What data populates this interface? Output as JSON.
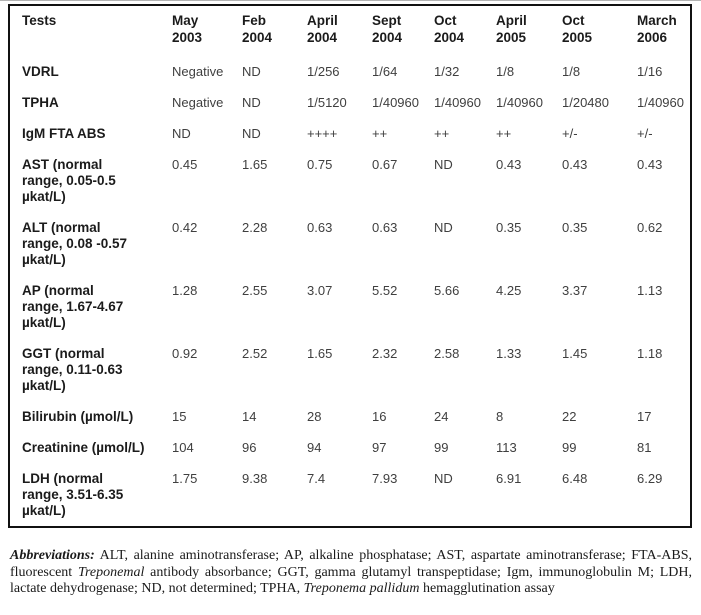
{
  "table": {
    "header": [
      "Tests",
      "May\n2003",
      "Feb\n2004",
      "April\n2004",
      "Sept\n2004",
      "Oct\n2004",
      "April\n2005",
      "Oct\n2005",
      "March\n2006"
    ],
    "rows": [
      {
        "label": "VDRL",
        "values": [
          "Negative",
          "ND",
          "1/256",
          "1/64",
          "1/32",
          "1/8",
          "1/8",
          "1/16"
        ]
      },
      {
        "label": "TPHA",
        "values": [
          "Negative",
          "ND",
          "1/5120",
          "1/40960",
          "1/40960",
          "1/40960",
          "1/20480",
          "1/40960"
        ]
      },
      {
        "label": "IgM FTA ABS",
        "values": [
          "ND",
          "ND",
          "++++",
          "++",
          "++",
          "++",
          "+/-",
          "+/-"
        ]
      },
      {
        "label": "AST (normal\nrange, 0.05-0.5\nµkat/L)",
        "values": [
          "0.45",
          "1.65",
          "0.75",
          "0.67",
          "ND",
          "0.43",
          "0.43",
          "0.43"
        ]
      },
      {
        "label": "ALT (normal\nrange, 0.08 -0.57\nµkat/L)",
        "values": [
          "0.42",
          "2.28",
          "0.63",
          "0.63",
          "ND",
          "0.35",
          "0.35",
          "0.62"
        ]
      },
      {
        "label": "AP (normal\nrange, 1.67-4.67\nµkat/L)",
        "values": [
          "1.28",
          "2.55",
          "3.07",
          "5.52",
          "5.66",
          "4.25",
          "3.37",
          "1.13"
        ]
      },
      {
        "label": "GGT  (normal\nrange, 0.11-0.63\nµkat/L)",
        "values": [
          "0.92",
          "2.52",
          "1.65",
          "2.32",
          "2.58",
          "1.33",
          "1.45",
          "1.18"
        ]
      },
      {
        "label": "Bilirubin (µmol/L)",
        "values": [
          "15",
          "14",
          "28",
          "16",
          "24",
          "8",
          "22",
          "17"
        ]
      },
      {
        "label": "Creatinine (µmol/L)",
        "values": [
          "104",
          "96",
          "94",
          "97",
          "99",
          "113",
          "99",
          "81"
        ]
      },
      {
        "label": "LDH (normal\nrange, 3.51-6.35\nµkat/L)",
        "values": [
          "1.75",
          "9.38",
          "7.4",
          "7.93",
          "ND",
          "6.91",
          "6.48",
          "6.29"
        ]
      }
    ]
  },
  "footnote": {
    "segments": [
      {
        "text": "Abbreviations:",
        "style": "bold-italic"
      },
      {
        "text": " ALT, alanine aminotransferase; AP, alkaline phosphatase; AST, aspartate aminotransferase; FTA-ABS, fluorescent ",
        "style": "normal"
      },
      {
        "text": "Treponemal",
        "style": "italic"
      },
      {
        "text": " antibody absorbance; GGT, gamma glutamyl transpeptidase; Igm, immunoglobulin M; LDH, lactate dehydrogenase; ND, not determined; TPHA, ",
        "style": "normal"
      },
      {
        "text": "Treponema pallidum",
        "style": "italic"
      },
      {
        "text": " hemagglutination assay",
        "style": "normal"
      }
    ]
  },
  "colors": {
    "border": "#111111",
    "label_text": "#1b1b1b",
    "value_text": "#3f3f3f",
    "footnote_text": "#1a1a1a",
    "top_hairline": "#b3b3b3"
  }
}
